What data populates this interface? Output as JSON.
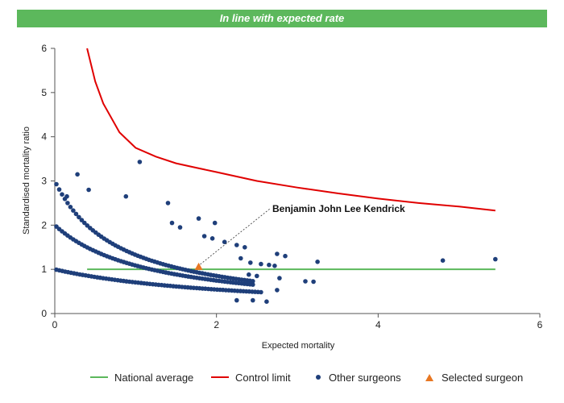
{
  "banner": {
    "text": "In line with expected rate"
  },
  "colors": {
    "banner": "#5cb85c",
    "national_average": "#5cb85c",
    "control_limit": "#e00000",
    "other_surgeons": "#1f3f7a",
    "selected_surgeon": "#e87722"
  },
  "annotation": {
    "text": "Benjamin John Lee Kendrick"
  },
  "legend": {
    "national_average": "National average",
    "control_limit": "Control limit",
    "other_surgeons": "Other surgeons",
    "selected_surgeon": "Selected surgeon"
  },
  "chart_data": {
    "type": "scatter",
    "title": "",
    "xlabel": "Expected mortality",
    "ylabel": "Standardised mortality ratio",
    "xlim": [
      0,
      6
    ],
    "ylim": [
      0,
      6
    ],
    "xticks": [
      "0",
      "2",
      "4",
      "6"
    ],
    "yticks": [
      "0",
      "1",
      "2",
      "3",
      "4",
      "5",
      "6"
    ],
    "grid": false,
    "legend_position": "bottom",
    "national_average": {
      "y": 1,
      "x_range": [
        0.4,
        5.45
      ]
    },
    "control_limit": {
      "x": [
        0.4,
        0.5,
        0.6,
        0.8,
        1.0,
        1.25,
        1.5,
        1.75,
        2.0,
        2.5,
        3.0,
        3.5,
        4.0,
        4.5,
        5.0,
        5.45
      ],
      "y": [
        6.0,
        5.25,
        4.75,
        4.1,
        3.75,
        3.55,
        3.4,
        3.3,
        3.2,
        3.0,
        2.85,
        2.72,
        2.6,
        2.5,
        2.42,
        2.33
      ]
    },
    "other_surgeons_bands": [
      1,
      2,
      3,
      4,
      5
    ],
    "other_surgeons_extra": [
      {
        "x": 1.05,
        "y": 3.43
      },
      {
        "x": 0.28,
        "y": 3.15
      },
      {
        "x": 0.15,
        "y": 2.65
      },
      {
        "x": 0.42,
        "y": 2.8
      },
      {
        "x": 0.88,
        "y": 2.65
      },
      {
        "x": 1.4,
        "y": 2.5
      },
      {
        "x": 1.78,
        "y": 2.15
      },
      {
        "x": 1.98,
        "y": 2.05
      },
      {
        "x": 1.85,
        "y": 1.75
      },
      {
        "x": 1.95,
        "y": 1.7
      },
      {
        "x": 2.1,
        "y": 1.62
      },
      {
        "x": 2.25,
        "y": 1.55
      },
      {
        "x": 2.35,
        "y": 1.5
      },
      {
        "x": 1.55,
        "y": 1.95
      },
      {
        "x": 1.45,
        "y": 2.05
      },
      {
        "x": 2.3,
        "y": 1.25
      },
      {
        "x": 2.42,
        "y": 1.15
      },
      {
        "x": 2.55,
        "y": 1.12
      },
      {
        "x": 2.65,
        "y": 1.1
      },
      {
        "x": 2.75,
        "y": 1.35
      },
      {
        "x": 2.85,
        "y": 1.3
      },
      {
        "x": 3.25,
        "y": 1.17
      },
      {
        "x": 2.72,
        "y": 1.08
      },
      {
        "x": 2.4,
        "y": 0.88
      },
      {
        "x": 2.5,
        "y": 0.85
      },
      {
        "x": 2.78,
        "y": 0.8
      },
      {
        "x": 3.1,
        "y": 0.73
      },
      {
        "x": 3.2,
        "y": 0.72
      },
      {
        "x": 2.75,
        "y": 0.53
      },
      {
        "x": 2.45,
        "y": 0.3
      },
      {
        "x": 2.62,
        "y": 0.27
      },
      {
        "x": 2.25,
        "y": 0.3
      },
      {
        "x": 4.8,
        "y": 1.2
      },
      {
        "x": 5.45,
        "y": 1.23
      }
    ],
    "selected_surgeon": {
      "name": "Benjamin John Lee Kendrick",
      "x": 1.78,
      "y": 1.06
    }
  }
}
